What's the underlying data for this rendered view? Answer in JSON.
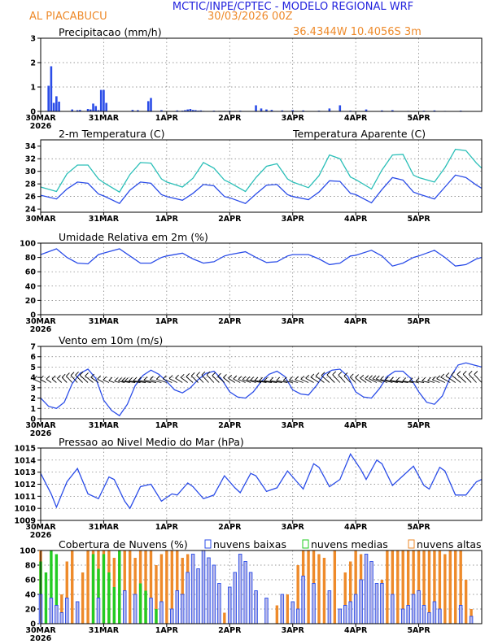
{
  "header": {
    "title": "MCTIC/INPE/CPTEC - MODELO REGIONAL WRF",
    "location": "AL PIACABUCU",
    "run": "30/03/2026 00Z",
    "coords": "36.4344W 10.4056S 3m"
  },
  "colors": {
    "title": "#2222dd",
    "orange": "#ee8a2a",
    "blue": "#2b4de8",
    "cyan": "#2bbfb8",
    "green": "#22cc22",
    "low_cloud_fill": "#b8b8e8"
  },
  "x_axis": {
    "ticks": [
      "30MAR",
      "31MAR",
      "1APR",
      "2APR",
      "3APR",
      "4APR",
      "5APR"
    ],
    "year": "2026",
    "start_hour": 0,
    "end_hour": 168,
    "hours_per_day": 24
  },
  "chart_data": [
    {
      "id": "precip",
      "type": "bar",
      "title": "Precipitacao (mm/h)",
      "ylim": [
        0,
        3
      ],
      "yticks": [
        "0",
        "1",
        "2",
        "3"
      ],
      "show_year_label": true,
      "series": [
        {
          "name": "Precipitacao",
          "color": "blue",
          "x": [
            2,
            3,
            4,
            5,
            6,
            7,
            12,
            14,
            15,
            18,
            19,
            20,
            21,
            22,
            23,
            24,
            25,
            35,
            37,
            41,
            42,
            46,
            52,
            54,
            55,
            56,
            57,
            58,
            59,
            60,
            61,
            62,
            66,
            68,
            70,
            72,
            74,
            76,
            82,
            84,
            86,
            88,
            92,
            96,
            100,
            106,
            110,
            114,
            118,
            124,
            130,
            134,
            140,
            146,
            150,
            154,
            160
          ],
          "values": [
            0.02,
            1.05,
            1.85,
            0.35,
            0.62,
            0.4,
            0.08,
            0.05,
            0.06,
            0.1,
            0.08,
            0.32,
            0.22,
            0.05,
            0.88,
            0.88,
            0.35,
            0.06,
            0.05,
            0.42,
            0.55,
            0.05,
            0.04,
            0.03,
            0.05,
            0.08,
            0.1,
            0.06,
            0.05,
            0.03,
            0.04,
            0.02,
            0.03,
            0.02,
            0.02,
            0.03,
            0.02,
            0.03,
            0.25,
            0.12,
            0.08,
            0.06,
            0.04,
            0.05,
            0.04,
            0.03,
            0.12,
            0.25,
            0.03,
            0.08,
            0.04,
            0.05,
            0.02,
            0.03,
            0.04,
            0.02,
            0.03
          ]
        }
      ]
    },
    {
      "id": "temp",
      "type": "line",
      "title": "2-m Temperatura (C)",
      "legend": "Temperatura Aparente (C)",
      "ylim": [
        23.5,
        35
      ],
      "yticks": [
        "24",
        "26",
        "28",
        "30",
        "32",
        "34"
      ],
      "show_year_label": false,
      "series": [
        {
          "name": "Temperatura",
          "color": "blue",
          "x": [
            0,
            6,
            10,
            14,
            18,
            22,
            24,
            30,
            34,
            38,
            42,
            46,
            48,
            54,
            58,
            62,
            66,
            70,
            72,
            78,
            82,
            86,
            90,
            94,
            96,
            102,
            106,
            110,
            114,
            118,
            120,
            126,
            130,
            134,
            138,
            142,
            144,
            150,
            154,
            158,
            162,
            166,
            168
          ],
          "values": [
            26.2,
            25.6,
            27.2,
            28.3,
            28.1,
            26.4,
            26.1,
            24.9,
            27.0,
            28.3,
            28.1,
            26.3,
            26.0,
            25.4,
            26.5,
            27.9,
            27.7,
            26.0,
            25.8,
            24.9,
            26.4,
            27.8,
            27.9,
            26.3,
            26.0,
            25.5,
            26.7,
            28.5,
            28.4,
            26.5,
            26.3,
            25.0,
            27.1,
            29.0,
            28.6,
            26.7,
            26.4,
            25.6,
            27.5,
            29.4,
            29.0,
            27.8,
            27.3
          ]
        },
        {
          "name": "Temperatura Aparente (C)",
          "color": "cyan",
          "x": [
            0,
            6,
            10,
            14,
            18,
            22,
            24,
            30,
            34,
            38,
            42,
            46,
            48,
            54,
            58,
            62,
            66,
            70,
            72,
            78,
            82,
            86,
            90,
            94,
            96,
            102,
            106,
            110,
            114,
            118,
            120,
            126,
            130,
            134,
            138,
            142,
            144,
            150,
            154,
            158,
            162,
            166,
            168
          ],
          "values": [
            27.5,
            26.8,
            29.6,
            31.0,
            31.0,
            28.8,
            28.2,
            26.7,
            29.5,
            31.4,
            31.3,
            28.8,
            28.3,
            27.5,
            28.9,
            31.4,
            30.5,
            28.6,
            28.2,
            26.8,
            29.0,
            30.8,
            31.2,
            28.8,
            28.3,
            27.4,
            29.3,
            32.6,
            32.0,
            29.1,
            28.7,
            27.2,
            30.2,
            32.6,
            32.7,
            29.4,
            29.0,
            28.3,
            30.6,
            33.5,
            33.3,
            31.3,
            30.5
          ]
        }
      ]
    },
    {
      "id": "umid",
      "type": "line",
      "title": "Umidade Relativa em 2m (%)",
      "ylim": [
        0,
        100
      ],
      "yticks": [
        "0",
        "20",
        "40",
        "60",
        "80",
        "100"
      ],
      "show_year_label": true,
      "series": [
        {
          "name": "Umidade Relativa",
          "color": "blue",
          "x": [
            0,
            6,
            10,
            14,
            18,
            22,
            24,
            30,
            34,
            38,
            42,
            46,
            48,
            54,
            58,
            62,
            66,
            70,
            72,
            78,
            82,
            86,
            90,
            94,
            96,
            102,
            106,
            110,
            114,
            118,
            120,
            126,
            130,
            134,
            138,
            142,
            144,
            150,
            154,
            158,
            162,
            166,
            168
          ],
          "values": [
            84,
            92,
            80,
            72,
            71,
            84,
            86,
            92,
            82,
            72,
            72,
            80,
            82,
            86,
            78,
            72,
            74,
            82,
            84,
            88,
            80,
            73,
            74,
            82,
            84,
            84,
            78,
            70,
            72,
            82,
            83,
            90,
            82,
            68,
            72,
            80,
            82,
            90,
            80,
            68,
            70,
            78,
            80
          ]
        }
      ]
    },
    {
      "id": "vento",
      "type": "line",
      "title": "Vento em 10m (m/s)",
      "ylim": [
        0,
        7
      ],
      "yticks": [
        "0",
        "1",
        "2",
        "3",
        "4",
        "5",
        "6",
        "7"
      ],
      "show_year_label": true,
      "barb_baseline": 3.5,
      "series": [
        {
          "name": "Vento",
          "color": "blue",
          "x": [
            0,
            3,
            6,
            9,
            12,
            15,
            18,
            21,
            24,
            27,
            30,
            33,
            36,
            39,
            42,
            45,
            48,
            51,
            54,
            57,
            60,
            63,
            66,
            69,
            72,
            75,
            78,
            81,
            84,
            87,
            90,
            93,
            96,
            99,
            102,
            105,
            108,
            111,
            114,
            117,
            120,
            123,
            126,
            129,
            132,
            135,
            138,
            141,
            144,
            147,
            150,
            153,
            156,
            159,
            162,
            165,
            168
          ],
          "values": [
            2.0,
            1.2,
            1.0,
            1.6,
            3.4,
            4.4,
            4.8,
            3.9,
            1.8,
            0.8,
            0.3,
            1.4,
            3.2,
            4.2,
            4.7,
            4.3,
            3.6,
            2.8,
            2.5,
            3.0,
            3.8,
            4.4,
            4.6,
            3.8,
            2.6,
            2.1,
            2.0,
            2.6,
            3.6,
            4.3,
            4.6,
            4.1,
            2.8,
            2.4,
            2.3,
            3.2,
            4.3,
            4.7,
            4.8,
            4.1,
            2.6,
            2.1,
            2.0,
            2.9,
            4.1,
            4.6,
            4.6,
            3.9,
            2.6,
            1.6,
            1.4,
            2.2,
            4.0,
            5.2,
            5.4,
            5.2,
            5.0
          ]
        }
      ]
    },
    {
      "id": "pressao",
      "type": "line",
      "title": "Pressao ao Nivel Medio do Mar (hPa)",
      "ylim": [
        1009,
        1015
      ],
      "yticks": [
        "1009",
        "1010",
        "1011",
        "1012",
        "1013",
        "1014",
        "1015"
      ],
      "show_year_label": true,
      "series": [
        {
          "name": "Pressao",
          "color": "blue",
          "x": [
            0,
            4,
            6,
            10,
            14,
            18,
            22,
            26,
            28,
            32,
            34,
            38,
            42,
            46,
            50,
            52,
            56,
            58,
            62,
            66,
            70,
            74,
            76,
            80,
            82,
            86,
            90,
            94,
            98,
            100,
            104,
            106,
            110,
            114,
            118,
            122,
            124,
            128,
            130,
            134,
            138,
            142,
            146,
            148,
            152,
            154,
            158,
            162,
            166,
            168
          ],
          "values": [
            1012.9,
            1011.2,
            1010.1,
            1012.2,
            1013.3,
            1011.2,
            1010.8,
            1012.6,
            1012.4,
            1010.6,
            1010.0,
            1011.8,
            1012.0,
            1010.6,
            1011.2,
            1011.1,
            1012.1,
            1011.8,
            1010.8,
            1011.1,
            1012.7,
            1011.7,
            1011.3,
            1012.9,
            1012.7,
            1011.4,
            1011.7,
            1013.1,
            1012.1,
            1011.6,
            1013.7,
            1013.4,
            1011.8,
            1012.4,
            1014.5,
            1013.2,
            1012.4,
            1014.0,
            1013.7,
            1011.9,
            1012.7,
            1013.5,
            1011.9,
            1011.6,
            1013.4,
            1013.1,
            1011.1,
            1011.1,
            1012.2,
            1012.4
          ]
        }
      ]
    },
    {
      "id": "nuvens",
      "type": "bar",
      "title": "Cobertura de Nuvens (%)",
      "legend_entries": [
        "nuvens baixas",
        "nuvens medias",
        "nuvens altas"
      ],
      "ylim": [
        0,
        100
      ],
      "yticks": [
        "0",
        "20",
        "40",
        "60",
        "80",
        "100"
      ],
      "show_year_label": true,
      "series": [
        {
          "name": "nuvens altas",
          "color": "orange",
          "x": [
            0,
            8,
            10,
            12,
            16,
            18,
            20,
            22,
            24,
            26,
            28,
            30,
            32,
            34,
            36,
            38,
            40,
            42,
            44,
            46,
            48,
            50,
            52,
            54,
            56,
            58,
            60,
            62,
            64,
            68,
            70,
            72,
            76,
            82,
            86,
            90,
            94,
            98,
            100,
            102,
            104,
            106,
            108,
            110,
            112,
            116,
            118,
            120,
            122,
            124,
            126,
            130,
            132,
            134,
            136,
            138,
            140,
            142,
            144,
            146,
            148,
            150,
            152,
            154,
            156,
            158,
            160,
            162,
            164
          ],
          "values": [
            100,
            40,
            85,
            100,
            70,
            100,
            100,
            100,
            100,
            100,
            90,
            100,
            100,
            100,
            90,
            100,
            100,
            100,
            80,
            95,
            100,
            100,
            100,
            90,
            95,
            30,
            20,
            15,
            10,
            20,
            15,
            10,
            10,
            20,
            15,
            25,
            40,
            80,
            100,
            100,
            100,
            95,
            90,
            30,
            100,
            70,
            85,
            100,
            95,
            40,
            10,
            60,
            100,
            100,
            100,
            100,
            100,
            100,
            100,
            100,
            100,
            100,
            100,
            95,
            100,
            100,
            100,
            60,
            20
          ]
        },
        {
          "name": "nuvens medias",
          "color": "green",
          "x": [
            0,
            2,
            4,
            6,
            20,
            22,
            24,
            26,
            28,
            30,
            32,
            36,
            38,
            40,
            42,
            44,
            52,
            54,
            56
          ],
          "values": [
            85,
            70,
            100,
            95,
            95,
            75,
            95,
            70,
            50,
            100,
            40,
            30,
            55,
            45,
            30,
            20,
            45,
            20,
            20
          ]
        },
        {
          "name": "nuvens baixas",
          "color": "blue",
          "x": [
            0,
            4,
            6,
            8,
            10,
            14,
            22,
            32,
            36,
            42,
            46,
            50,
            52,
            54,
            56,
            58,
            60,
            62,
            64,
            66,
            68,
            72,
            74,
            76,
            78,
            80,
            82,
            86,
            92,
            96,
            98,
            100,
            104,
            110,
            114,
            116,
            118,
            120,
            122,
            124,
            126,
            128,
            130,
            134,
            138,
            140,
            142,
            144,
            146,
            148,
            150,
            152,
            160,
            164
          ],
          "values": [
            40,
            35,
            25,
            15,
            35,
            30,
            35,
            45,
            40,
            35,
            30,
            20,
            45,
            40,
            70,
            95,
            75,
            100,
            90,
            80,
            55,
            50,
            70,
            95,
            85,
            70,
            45,
            35,
            40,
            30,
            20,
            65,
            55,
            45,
            20,
            25,
            30,
            40,
            60,
            95,
            85,
            55,
            55,
            40,
            20,
            25,
            40,
            45,
            25,
            15,
            30,
            20,
            25,
            10
          ]
        }
      ]
    }
  ]
}
